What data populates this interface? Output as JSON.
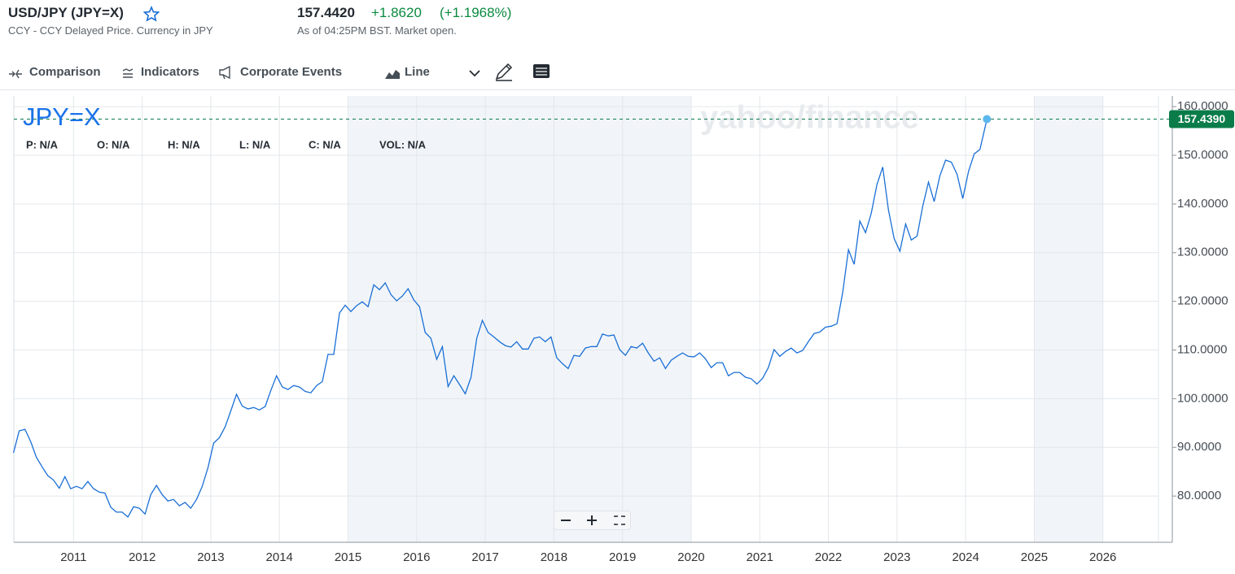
{
  "header": {
    "symbol": "USD/JPY (JPY=X)",
    "subtitle": "CCY - CCY Delayed Price. Currency in JPY",
    "price": "157.4420",
    "change": "+1.8620",
    "change_pct": "(+1.1968%)",
    "as_of": "As of 04:25PM BST. Market open."
  },
  "toolbar": {
    "items": [
      "Comparison",
      "Indicators",
      "Corporate Events",
      "Line"
    ]
  },
  "chart_data": {
    "type": "line",
    "watermark": "yahoo/finance",
    "readouts": [
      "P: N/A",
      "O: N/A",
      "H: N/A",
      "L: N/A",
      "C: N/A",
      "VOL: N/A"
    ],
    "current_price_label": "157.4390",
    "series": [
      {
        "name": "JPY=X",
        "color": "#1a6fd6",
        "x": [
          2010.125,
          2010.208,
          2010.292,
          2010.375,
          2010.458,
          2010.542,
          2010.625,
          2010.708,
          2010.792,
          2010.875,
          2010.958,
          2011.042,
          2011.125,
          2011.208,
          2011.292,
          2011.375,
          2011.458,
          2011.542,
          2011.625,
          2011.708,
          2011.792,
          2011.875,
          2011.958,
          2012.042,
          2012.125,
          2012.208,
          2012.292,
          2012.375,
          2012.458,
          2012.542,
          2012.625,
          2012.708,
          2012.792,
          2012.875,
          2012.958,
          2013.042,
          2013.125,
          2013.208,
          2013.292,
          2013.375,
          2013.458,
          2013.542,
          2013.625,
          2013.708,
          2013.792,
          2013.875,
          2013.958,
          2014.042,
          2014.125,
          2014.208,
          2014.292,
          2014.375,
          2014.458,
          2014.542,
          2014.625,
          2014.708,
          2014.792,
          2014.875,
          2014.958,
          2015.042,
          2015.125,
          2015.208,
          2015.292,
          2015.375,
          2015.458,
          2015.542,
          2015.625,
          2015.708,
          2015.792,
          2015.875,
          2015.958,
          2016.042,
          2016.125,
          2016.208,
          2016.292,
          2016.375,
          2016.458,
          2016.542,
          2016.625,
          2016.708,
          2016.792,
          2016.875,
          2016.958,
          2017.042,
          2017.125,
          2017.208,
          2017.292,
          2017.375,
          2017.458,
          2017.542,
          2017.625,
          2017.708,
          2017.792,
          2017.875,
          2017.958,
          2018.042,
          2018.125,
          2018.208,
          2018.292,
          2018.375,
          2018.458,
          2018.542,
          2018.625,
          2018.708,
          2018.792,
          2018.875,
          2018.958,
          2019.042,
          2019.125,
          2019.208,
          2019.292,
          2019.375,
          2019.458,
          2019.542,
          2019.625,
          2019.708,
          2019.792,
          2019.875,
          2019.958,
          2020.042,
          2020.125,
          2020.208,
          2020.292,
          2020.375,
          2020.458,
          2020.542,
          2020.625,
          2020.708,
          2020.792,
          2020.875,
          2020.958,
          2021.042,
          2021.125,
          2021.208,
          2021.292,
          2021.375,
          2021.458,
          2021.542,
          2021.625,
          2021.708,
          2021.792,
          2021.875,
          2021.958,
          2022.042,
          2022.125,
          2022.208,
          2022.292,
          2022.375,
          2022.458,
          2022.542,
          2022.625,
          2022.708,
          2022.792,
          2022.875,
          2022.958,
          2023.042,
          2023.125,
          2023.208,
          2023.292,
          2023.375,
          2023.458,
          2023.542,
          2023.625,
          2023.708,
          2023.792,
          2023.875,
          2023.958,
          2024.042,
          2024.125,
          2024.208,
          2024.31
        ],
        "values": [
          88.9,
          93.4,
          93.7,
          91.2,
          88.0,
          86.0,
          84.2,
          83.3,
          81.6,
          84.0,
          81.5,
          82.0,
          81.5,
          83.0,
          81.5,
          80.8,
          80.6,
          77.7,
          76.7,
          76.7,
          75.7,
          77.8,
          77.5,
          76.3,
          80.3,
          82.2,
          80.3,
          79.0,
          79.3,
          78.0,
          78.7,
          77.5,
          79.3,
          82.0,
          85.8,
          90.9,
          92.0,
          94.2,
          97.5,
          100.9,
          98.5,
          97.9,
          98.2,
          97.7,
          98.4,
          101.7,
          104.7,
          102.4,
          101.9,
          102.7,
          102.4,
          101.5,
          101.2,
          102.7,
          103.5,
          109.1,
          109.1,
          117.6,
          119.2,
          117.9,
          119.1,
          119.9,
          118.9,
          123.4,
          122.4,
          123.8,
          121.4,
          120.1,
          121.1,
          122.6,
          120.3,
          118.9,
          113.6,
          112.4,
          108.1,
          110.7,
          102.5,
          104.7,
          102.9,
          101.0,
          104.4,
          112.4,
          116.1,
          113.6,
          112.7,
          111.7,
          110.9,
          110.6,
          111.7,
          110.2,
          110.2,
          112.4,
          112.7,
          111.7,
          112.7,
          108.4,
          107.2,
          106.2,
          108.9,
          108.7,
          110.4,
          110.7,
          110.7,
          113.3,
          112.9,
          113.1,
          110.1,
          108.9,
          110.7,
          110.4,
          111.4,
          109.4,
          107.7,
          108.4,
          106.2,
          107.9,
          108.7,
          109.4,
          108.7,
          108.6,
          109.4,
          108.2,
          106.4,
          107.4,
          107.4,
          104.7,
          105.4,
          105.4,
          104.4,
          104.1,
          103.0,
          104.2,
          106.4,
          110.1,
          108.7,
          109.7,
          110.4,
          109.4,
          109.9,
          111.7,
          113.4,
          113.7,
          114.7,
          114.9,
          115.4,
          121.8,
          130.6,
          127.6,
          136.5,
          134.1,
          138.1,
          144.0,
          147.6,
          138.8,
          132.9,
          130.3,
          135.9,
          132.6,
          133.4,
          139.6,
          144.5,
          140.5,
          145.8,
          149.0,
          148.6,
          146.1,
          141.1,
          146.7,
          150.3,
          151.2,
          157.439
        ]
      }
    ],
    "xlim": [
      2010.13,
      2026.81
    ],
    "xticks": [
      2011,
      2012,
      2013,
      2014,
      2015,
      2016,
      2017,
      2018,
      2019,
      2020,
      2021,
      2022,
      2023,
      2024,
      2025,
      2026
    ],
    "ylim": [
      70.5,
      162.2
    ],
    "yticks": [
      {
        "value": 80,
        "label": "80.0000"
      },
      {
        "value": 90,
        "label": "90.0000"
      },
      {
        "value": 100,
        "label": "100.0000"
      },
      {
        "value": 110,
        "label": "110.0000"
      },
      {
        "value": 120,
        "label": "120.0000"
      },
      {
        "value": 130,
        "label": "130.0000"
      },
      {
        "value": 140,
        "label": "140.0000"
      },
      {
        "value": 150,
        "label": "150.0000"
      },
      {
        "value": 160,
        "label": "160.0000"
      }
    ],
    "shaded_ranges": [
      [
        2015,
        2020
      ],
      [
        2025,
        2026
      ]
    ],
    "grid": true
  }
}
